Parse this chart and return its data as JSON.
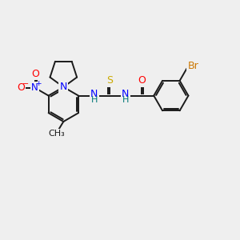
{
  "background_color": "#efefef",
  "bond_color": "#1a1a1a",
  "atom_colors": {
    "N": "#0000ff",
    "O": "#ff0000",
    "S": "#ccaa00",
    "Br": "#cc7700",
    "C": "#1a1a1a",
    "H": "#007777"
  },
  "figsize": [
    3.0,
    3.0
  ],
  "dpi": 100
}
